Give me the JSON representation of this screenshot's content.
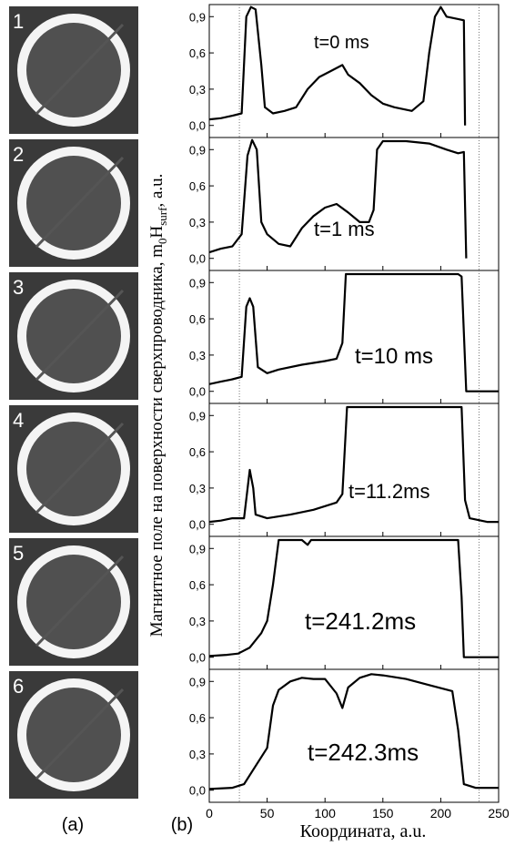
{
  "chart_data": [
    {
      "type": "line",
      "annotation": "t=0 ms",
      "xlim": [
        0,
        250
      ],
      "xticks": [
        0,
        50,
        100,
        150,
        200,
        250
      ],
      "ylim": [
        -0.1,
        1.0
      ],
      "yticks": [
        {
          "value": 0,
          "label": "0,0"
        },
        {
          "value": 0.3,
          "label": "0,3"
        },
        {
          "value": 0.6,
          "label": "0,6"
        },
        {
          "value": 0.9,
          "label": "0,9"
        }
      ],
      "color": "#000000",
      "x": [
        0,
        10,
        20,
        28,
        32,
        36,
        40,
        45,
        48,
        55,
        65,
        75,
        85,
        95,
        105,
        115,
        120,
        130,
        140,
        150,
        160,
        175,
        185,
        190,
        195,
        200,
        205,
        215,
        220,
        221
      ],
      "values": [
        0.05,
        0.06,
        0.08,
        0.1,
        0.9,
        0.98,
        0.96,
        0.5,
        0.15,
        0.1,
        0.12,
        0.15,
        0.3,
        0.4,
        0.45,
        0.5,
        0.42,
        0.35,
        0.25,
        0.18,
        0.15,
        0.12,
        0.2,
        0.6,
        0.9,
        0.98,
        0.9,
        0.88,
        0.87,
        0.0
      ]
    },
    {
      "type": "line",
      "annotation": "t=1 ms",
      "xlim": [
        0,
        250
      ],
      "xticks": [
        0,
        50,
        100,
        150,
        200,
        250
      ],
      "ylim": [
        -0.1,
        1.0
      ],
      "yticks": [
        {
          "value": 0,
          "label": "0,0"
        },
        {
          "value": 0.3,
          "label": "0,3"
        },
        {
          "value": 0.6,
          "label": "0,6"
        },
        {
          "value": 0.9,
          "label": "0,9"
        }
      ],
      "color": "#000000",
      "x": [
        0,
        10,
        20,
        28,
        33,
        37,
        41,
        45,
        50,
        60,
        70,
        80,
        90,
        100,
        110,
        120,
        130,
        138,
        142,
        145,
        150,
        170,
        190,
        205,
        215,
        220,
        222
      ],
      "values": [
        0.05,
        0.08,
        0.1,
        0.2,
        0.85,
        0.98,
        0.9,
        0.3,
        0.2,
        0.12,
        0.1,
        0.25,
        0.35,
        0.42,
        0.45,
        0.38,
        0.3,
        0.3,
        0.4,
        0.9,
        0.97,
        0.97,
        0.95,
        0.9,
        0.87,
        0.88,
        0.0
      ]
    },
    {
      "type": "line",
      "annotation": "t=10 ms",
      "xlim": [
        0,
        250
      ],
      "xticks": [
        0,
        50,
        100,
        150,
        200,
        250
      ],
      "ylim": [
        -0.1,
        1.0
      ],
      "yticks": [
        {
          "value": 0,
          "label": "0,0"
        },
        {
          "value": 0.3,
          "label": "0,3"
        },
        {
          "value": 0.6,
          "label": "0,6"
        },
        {
          "value": 0.9,
          "label": "0,9"
        }
      ],
      "color": "#000000",
      "x": [
        0,
        10,
        20,
        28,
        32,
        35,
        38,
        42,
        50,
        60,
        80,
        100,
        110,
        115,
        118,
        150,
        200,
        215,
        218,
        222,
        250
      ],
      "values": [
        0.06,
        0.08,
        0.1,
        0.12,
        0.7,
        0.77,
        0.7,
        0.2,
        0.15,
        0.18,
        0.22,
        0.25,
        0.27,
        0.4,
        0.97,
        0.97,
        0.97,
        0.97,
        0.95,
        0.0,
        0.0
      ]
    },
    {
      "type": "line",
      "annotation": "t=11.2ms",
      "xlim": [
        0,
        250
      ],
      "xticks": [
        0,
        50,
        100,
        150,
        200,
        250
      ],
      "ylim": [
        -0.1,
        1.0
      ],
      "yticks": [
        {
          "value": 0,
          "label": "0,0"
        },
        {
          "value": 0.3,
          "label": "0,3"
        },
        {
          "value": 0.6,
          "label": "0,6"
        },
        {
          "value": 0.9,
          "label": "0,9"
        }
      ],
      "color": "#000000",
      "x": [
        0,
        10,
        20,
        30,
        35,
        38,
        40,
        50,
        70,
        90,
        110,
        115,
        119,
        160,
        218,
        221,
        225,
        240,
        250
      ],
      "values": [
        0.02,
        0.03,
        0.05,
        0.05,
        0.45,
        0.3,
        0.08,
        0.05,
        0.08,
        0.12,
        0.18,
        0.25,
        0.97,
        0.97,
        0.97,
        0.2,
        0.05,
        0.02,
        0.02
      ]
    },
    {
      "type": "line",
      "annotation": "t=241.2ms",
      "xlim": [
        0,
        250
      ],
      "xticks": [
        0,
        50,
        100,
        150,
        200,
        250
      ],
      "ylim": [
        -0.1,
        1.0
      ],
      "yticks": [
        {
          "value": 0,
          "label": "0,0"
        },
        {
          "value": 0.3,
          "label": "0,3"
        },
        {
          "value": 0.6,
          "label": "0,6"
        },
        {
          "value": 0.9,
          "label": "0,9"
        }
      ],
      "color": "#000000",
      "x": [
        0,
        15,
        25,
        35,
        45,
        50,
        55,
        60,
        80,
        85,
        88,
        120,
        200,
        215,
        218,
        220,
        250
      ],
      "values": [
        0.01,
        0.02,
        0.03,
        0.08,
        0.2,
        0.3,
        0.6,
        0.97,
        0.97,
        0.93,
        0.97,
        0.97,
        0.97,
        0.97,
        0.5,
        0.0,
        0.0
      ]
    },
    {
      "type": "line",
      "annotation": "t=242.3ms",
      "xlim": [
        0,
        250
      ],
      "xticks": [
        0,
        50,
        100,
        150,
        200,
        250
      ],
      "ylim": [
        -0.1,
        1.0
      ],
      "yticks": [
        {
          "value": 0,
          "label": "0,0"
        },
        {
          "value": 0.3,
          "label": "0,3"
        },
        {
          "value": 0.6,
          "label": "0,6"
        },
        {
          "value": 0.9,
          "label": "0,9"
        }
      ],
      "color": "#000000",
      "x": [
        0,
        20,
        30,
        40,
        50,
        55,
        60,
        70,
        80,
        90,
        100,
        110,
        115,
        120,
        130,
        140,
        150,
        170,
        190,
        210,
        215,
        220,
        230,
        250
      ],
      "values": [
        0.01,
        0.02,
        0.05,
        0.2,
        0.35,
        0.7,
        0.83,
        0.9,
        0.93,
        0.92,
        0.92,
        0.8,
        0.68,
        0.85,
        0.93,
        0.96,
        0.95,
        0.92,
        0.87,
        0.82,
        0.5,
        0.05,
        0.02,
        0.02
      ],
      "x_label": "Координата, a.u."
    }
  ],
  "reference_lines": [
    26,
    233
  ],
  "y_label": [
    "Магнитное поле на поверхности сверхпроводника, m",
    "0",
    "H",
    "surf",
    ", a.u."
  ],
  "image_labels": [
    "1",
    "2",
    "3",
    "4",
    "5",
    "6"
  ],
  "panel_labels": [
    "(a)",
    "(b)"
  ]
}
